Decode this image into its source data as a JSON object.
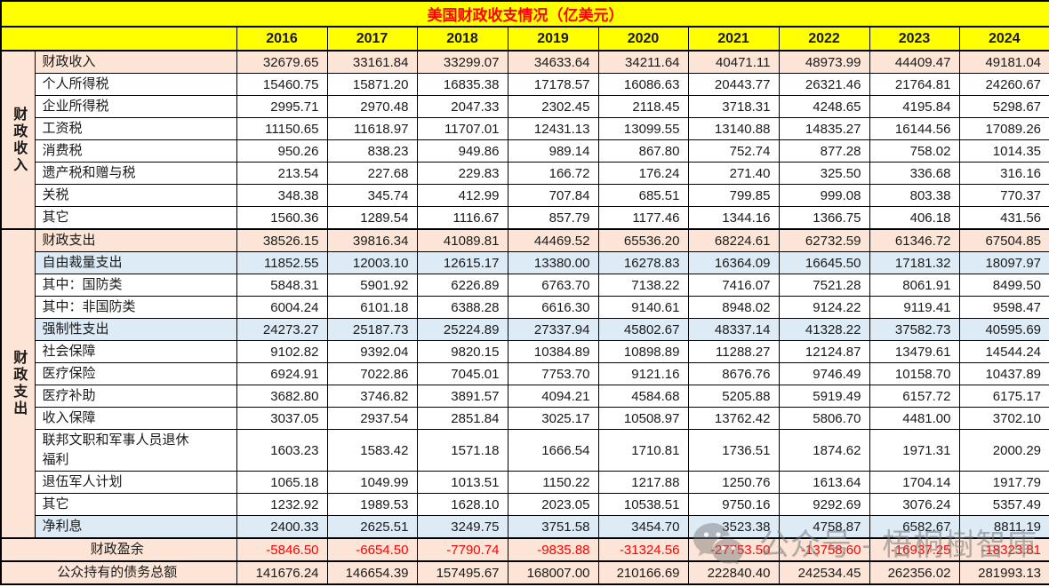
{
  "title": "美国财政收支情况（亿美元）",
  "years": [
    "2016",
    "2017",
    "2018",
    "2019",
    "2020",
    "2021",
    "2022",
    "2023",
    "2024"
  ],
  "side_labels": {
    "revenue": "财政收入",
    "expense": "财政支出"
  },
  "rows": [
    {
      "label": "财政收入",
      "section": "revenue",
      "emphasis": "total",
      "values": [
        "32679.65",
        "33161.84",
        "33299.07",
        "34633.64",
        "34211.64",
        "40471.11",
        "48973.99",
        "44409.47",
        "49181.04"
      ]
    },
    {
      "label": "个人所得税",
      "section": "revenue",
      "emphasis": "none",
      "values": [
        "15460.75",
        "15871.20",
        "16835.38",
        "17178.57",
        "16086.63",
        "20443.77",
        "26321.46",
        "21764.81",
        "24260.67"
      ]
    },
    {
      "label": "企业所得税",
      "section": "revenue",
      "emphasis": "none",
      "values": [
        "2995.71",
        "2970.48",
        "2047.33",
        "2302.45",
        "2118.45",
        "3718.31",
        "4248.65",
        "4195.84",
        "5298.67"
      ]
    },
    {
      "label": "工资税",
      "section": "revenue",
      "emphasis": "none",
      "values": [
        "11150.65",
        "11618.97",
        "11707.01",
        "12431.13",
        "13099.55",
        "13140.88",
        "14835.27",
        "16144.56",
        "17089.26"
      ]
    },
    {
      "label": "消费税",
      "section": "revenue",
      "emphasis": "none",
      "values": [
        "950.26",
        "838.23",
        "949.86",
        "989.14",
        "867.80",
        "752.74",
        "877.28",
        "758.02",
        "1014.35"
      ]
    },
    {
      "label": "遗产税和赠与税",
      "section": "revenue",
      "emphasis": "none",
      "values": [
        "213.54",
        "227.68",
        "229.83",
        "166.72",
        "176.24",
        "271.40",
        "325.50",
        "336.68",
        "316.16"
      ]
    },
    {
      "label": "关税",
      "section": "revenue",
      "emphasis": "none",
      "values": [
        "348.38",
        "345.74",
        "412.99",
        "707.84",
        "685.51",
        "799.85",
        "999.08",
        "803.38",
        "770.37"
      ]
    },
    {
      "label": "其它",
      "section": "revenue",
      "emphasis": "none",
      "values": [
        "1560.36",
        "1289.54",
        "1116.67",
        "857.79",
        "1177.46",
        "1344.16",
        "1366.75",
        "406.18",
        "431.56"
      ]
    },
    {
      "label": "财政支出",
      "section": "expense",
      "emphasis": "total",
      "values": [
        "38526.15",
        "39816.34",
        "41089.81",
        "44469.52",
        "65536.20",
        "68224.61",
        "62732.59",
        "61346.72",
        "67504.85"
      ]
    },
    {
      "label": "自由裁量支出",
      "section": "expense",
      "emphasis": "subtotal",
      "values": [
        "11852.55",
        "12003.10",
        "12615.17",
        "13380.00",
        "16278.83",
        "16364.09",
        "16645.50",
        "17181.32",
        "18097.97"
      ]
    },
    {
      "label": "其中：国防类",
      "section": "expense",
      "emphasis": "none",
      "values": [
        "5848.31",
        "5901.92",
        "6226.89",
        "6763.70",
        "7138.22",
        "7416.07",
        "7521.28",
        "8061.91",
        "8499.50"
      ]
    },
    {
      "label": "其中：非国防类",
      "section": "expense",
      "emphasis": "none",
      "values": [
        "6004.24",
        "6101.18",
        "6388.28",
        "6616.30",
        "9140.61",
        "8948.02",
        "9124.22",
        "9119.41",
        "9598.47"
      ]
    },
    {
      "label": "强制性支出",
      "section": "expense",
      "emphasis": "subtotal",
      "values": [
        "24273.27",
        "25187.73",
        "25224.89",
        "27337.94",
        "45802.67",
        "48337.14",
        "41328.22",
        "37582.73",
        "40595.69"
      ]
    },
    {
      "label": "社会保障",
      "section": "expense",
      "emphasis": "none",
      "values": [
        "9102.82",
        "9392.04",
        "9820.15",
        "10384.89",
        "10898.89",
        "11288.27",
        "12124.87",
        "13479.61",
        "14544.24"
      ]
    },
    {
      "label": "医疗保险",
      "section": "expense",
      "emphasis": "none",
      "values": [
        "6924.91",
        "7022.86",
        "7045.01",
        "7753.70",
        "9121.16",
        "8676.76",
        "9746.49",
        "10158.70",
        "10437.89"
      ]
    },
    {
      "label": "医疗补助",
      "section": "expense",
      "emphasis": "none",
      "values": [
        "3682.80",
        "3746.82",
        "3891.57",
        "4094.21",
        "4584.68",
        "5205.88",
        "5919.49",
        "6157.72",
        "6175.17"
      ]
    },
    {
      "label": "收入保障",
      "section": "expense",
      "emphasis": "none",
      "values": [
        "3037.05",
        "2937.54",
        "2851.84",
        "3025.17",
        "10508.97",
        "13762.42",
        "5806.70",
        "4481.00",
        "3702.10"
      ]
    },
    {
      "label": "联邦文职和军事人员退休\n福利",
      "section": "expense",
      "emphasis": "none",
      "values": [
        "1603.23",
        "1583.42",
        "1571.18",
        "1666.54",
        "1710.81",
        "1736.51",
        "1874.62",
        "1971.31",
        "2000.29"
      ]
    },
    {
      "label": "退伍军人计划",
      "section": "expense",
      "emphasis": "none",
      "values": [
        "1065.18",
        "1049.99",
        "1013.51",
        "1150.22",
        "1217.88",
        "1250.76",
        "1613.64",
        "1704.14",
        "1917.79"
      ]
    },
    {
      "label": "其它",
      "section": "expense",
      "emphasis": "none",
      "values": [
        "1232.92",
        "1989.53",
        "1628.10",
        "2023.05",
        "10538.51",
        "9750.16",
        "9292.69",
        "3076.24",
        "5357.49"
      ]
    },
    {
      "label": "净利息",
      "section": "expense",
      "emphasis": "subtotal",
      "values": [
        "2400.33",
        "2625.51",
        "3249.75",
        "3751.58",
        "3454.70",
        "3523.38",
        "4758.87",
        "6582.67",
        "8811.19"
      ]
    }
  ],
  "summary_rows": [
    {
      "label": "财政盈余",
      "values": [
        "-5846.50",
        "-6654.50",
        "-7790.74",
        "-9835.88",
        "-31324.56",
        "-27753.50",
        "-13758.60",
        "-16937.25",
        "-18323.81"
      ]
    },
    {
      "label": "公众持有的债务总额",
      "values": [
        "141676.24",
        "146654.39",
        "157495.67",
        "168007.00",
        "210166.69",
        "222840.40",
        "242534.45",
        "262356.02",
        "281993.13"
      ]
    }
  ],
  "watermark": {
    "icon": "wechat-icon",
    "text": "公众号 - 梧桐樹智庫"
  },
  "colors": {
    "header_yellow": "#ffff00",
    "title_text_red": "#ff0000",
    "total_row_peach": "#fce4d6",
    "subtotal_row_blue": "#ddebf7",
    "negative_red": "#ff0000",
    "border_black": "#000000",
    "watermark_gray": "#787878"
  }
}
